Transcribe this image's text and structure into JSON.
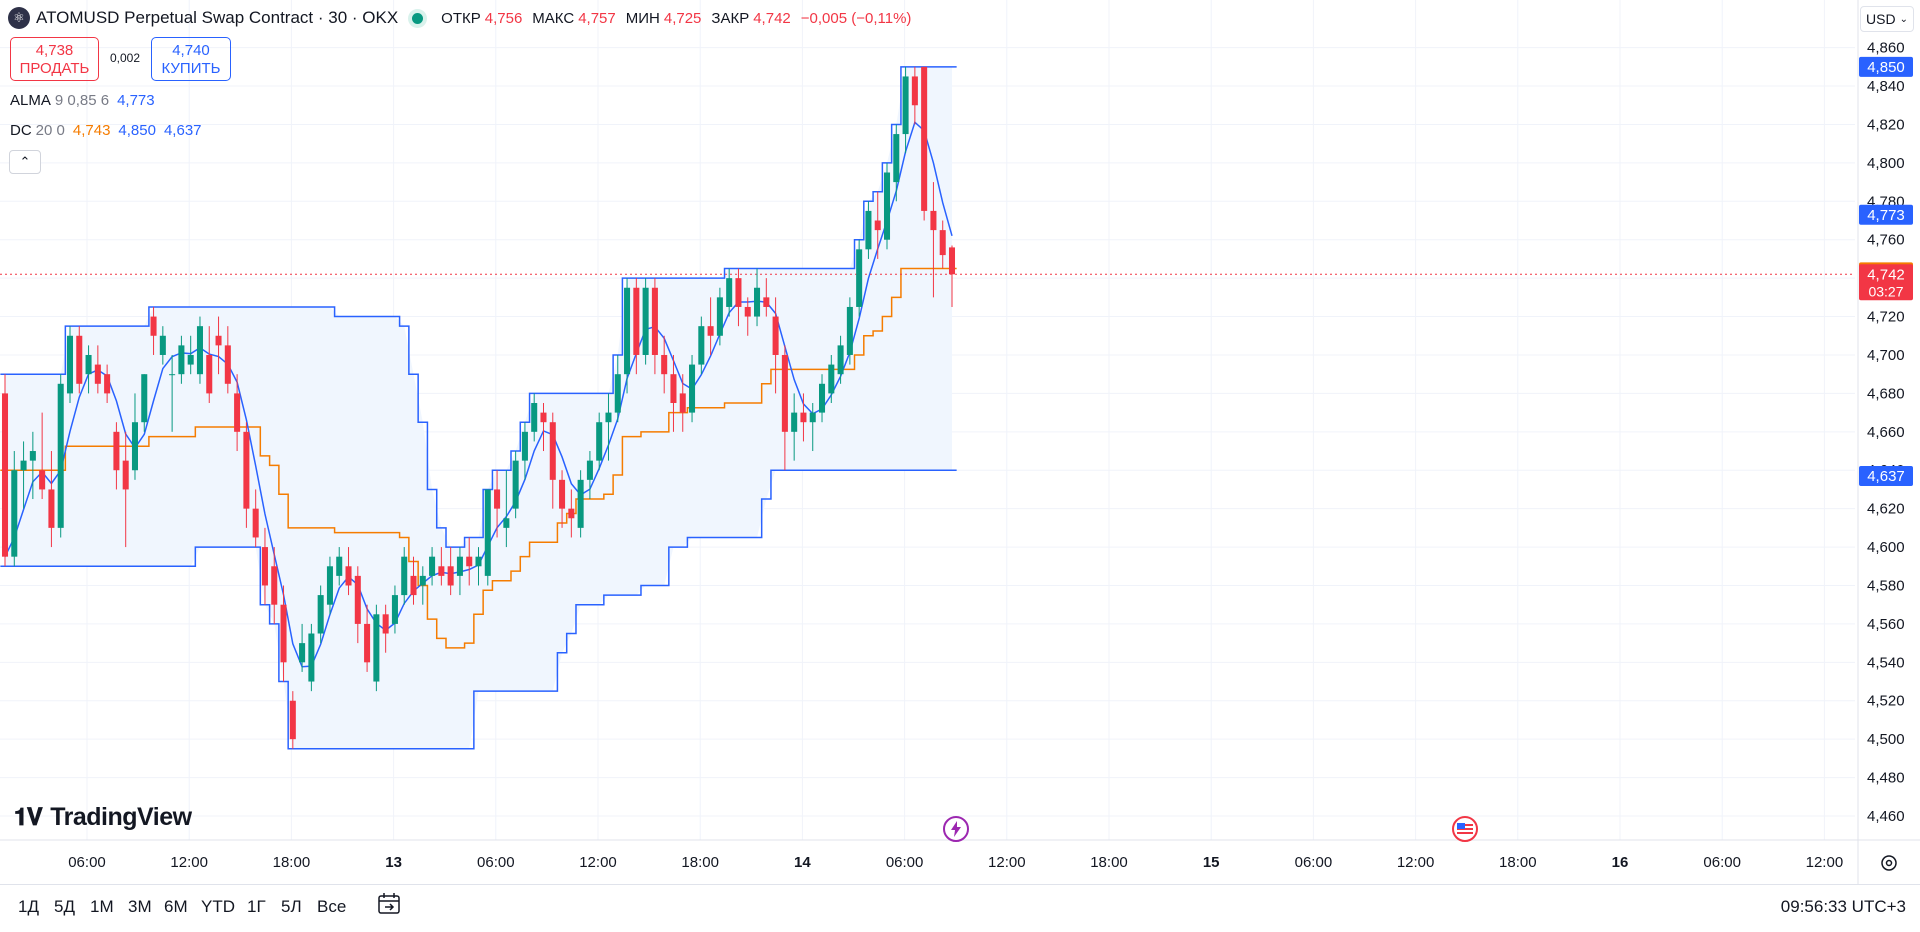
{
  "header": {
    "symbol_title": "ATOMUSD Perpetual Swap Contract · 30 · OKX",
    "icon": "atom-logo-icon",
    "ohlc": [
      {
        "label": "ОТКР",
        "value": "4,756"
      },
      {
        "label": "МАКС",
        "value": "4,757"
      },
      {
        "label": "МИН",
        "value": "4,725"
      },
      {
        "label": "ЗАКР",
        "value": "4,742"
      }
    ],
    "change": "−0,005 (−0,11%)",
    "currency": "USD"
  },
  "trade": {
    "sell_price": "4,738",
    "sell_label": "ПРОДАТЬ",
    "spread": "0,002",
    "buy_price": "4,740",
    "buy_label": "КУПИТЬ"
  },
  "indicators": {
    "alma": {
      "name": "ALMA",
      "params": "9 0,85 6",
      "value": "4,773"
    },
    "dc": {
      "name": "DC",
      "params": "20 0",
      "basis": "4,743",
      "upper": "4,850",
      "lower": "4,637"
    }
  },
  "branding": {
    "logo_text": "TradingView",
    "logo_icon": "tradingview-logo-icon"
  },
  "range_buttons": [
    "1Д",
    "5Д",
    "1М",
    "3М",
    "6М",
    "YTD",
    "1Г",
    "5Л",
    "Все"
  ],
  "clock": "09:56:33 UTC+3",
  "colors": {
    "up": "#089981",
    "down": "#f23645",
    "alma": "#2962ff",
    "dc_upper": "#2962ff",
    "dc_basis": "#f57c00",
    "dc_fill": "#f0f6fe"
  },
  "chart_data": {
    "type": "candlestick",
    "timeframe": "30",
    "y_ticks": [
      "4,460",
      "4,480",
      "4,500",
      "4,520",
      "4,540",
      "4,560",
      "4,580",
      "4,600",
      "4,620",
      "4,640",
      "4,660",
      "4,680",
      "4,700",
      "4,720",
      "4,740",
      "4,760",
      "4,780",
      "4,800",
      "4,820",
      "4,840",
      "4,860"
    ],
    "ylim": [
      4.452,
      4.868
    ],
    "x_ticks": [
      "06:00",
      "12:00",
      "18:00",
      "13",
      "06:00",
      "12:00",
      "18:00",
      "14",
      "06:00",
      "12:00",
      "18:00",
      "15",
      "06:00",
      "12:00",
      "18:00",
      "16",
      "06:00",
      "12:00"
    ],
    "price_labels": [
      {
        "value": "4,850",
        "color": "#2962ff"
      },
      {
        "value": "4,773",
        "color": "#2962ff"
      },
      {
        "value": "4,743",
        "color": "#f57c00"
      },
      {
        "value": "4,742",
        "sub": "03:27",
        "color": "#f23645"
      },
      {
        "value": "4,637",
        "color": "#2962ff"
      }
    ],
    "last_price": 4.742,
    "candles": [
      {
        "o": 4.68,
        "h": 4.69,
        "l": 4.59,
        "c": 4.595
      },
      {
        "o": 4.595,
        "h": 4.65,
        "l": 4.59,
        "c": 4.64
      },
      {
        "o": 4.64,
        "h": 4.655,
        "l": 4.62,
        "c": 4.645
      },
      {
        "o": 4.645,
        "h": 4.66,
        "l": 4.625,
        "c": 4.65
      },
      {
        "o": 4.64,
        "h": 4.67,
        "l": 4.625,
        "c": 4.63
      },
      {
        "o": 4.63,
        "h": 4.65,
        "l": 4.6,
        "c": 4.61
      },
      {
        "o": 4.61,
        "h": 4.69,
        "l": 4.605,
        "c": 4.685
      },
      {
        "o": 4.68,
        "h": 4.715,
        "l": 4.675,
        "c": 4.71
      },
      {
        "o": 4.71,
        "h": 4.715,
        "l": 4.68,
        "c": 4.685
      },
      {
        "o": 4.69,
        "h": 4.705,
        "l": 4.68,
        "c": 4.7
      },
      {
        "o": 4.695,
        "h": 4.705,
        "l": 4.68,
        "c": 4.685
      },
      {
        "o": 4.69,
        "h": 4.695,
        "l": 4.675,
        "c": 4.68
      },
      {
        "o": 4.66,
        "h": 4.665,
        "l": 4.63,
        "c": 4.64
      },
      {
        "o": 4.645,
        "h": 4.66,
        "l": 4.6,
        "c": 4.63
      },
      {
        "o": 4.64,
        "h": 4.68,
        "l": 4.635,
        "c": 4.665
      },
      {
        "o": 4.665,
        "h": 4.69,
        "l": 4.66,
        "c": 4.69
      },
      {
        "o": 4.72,
        "h": 4.725,
        "l": 4.7,
        "c": 4.71
      },
      {
        "o": 4.7,
        "h": 4.715,
        "l": 4.695,
        "c": 4.71
      },
      {
        "o": 4.69,
        "h": 4.7,
        "l": 4.66,
        "c": 4.69
      },
      {
        "o": 4.69,
        "h": 4.71,
        "l": 4.685,
        "c": 4.705
      },
      {
        "o": 4.695,
        "h": 4.71,
        "l": 4.69,
        "c": 4.7
      },
      {
        "o": 4.69,
        "h": 4.72,
        "l": 4.685,
        "c": 4.715
      },
      {
        "o": 4.7,
        "h": 4.715,
        "l": 4.675,
        "c": 4.68
      },
      {
        "o": 4.71,
        "h": 4.72,
        "l": 4.69,
        "c": 4.705
      },
      {
        "o": 4.705,
        "h": 4.715,
        "l": 4.68,
        "c": 4.685
      },
      {
        "o": 4.68,
        "h": 4.69,
        "l": 4.65,
        "c": 4.66
      },
      {
        "o": 4.66,
        "h": 4.665,
        "l": 4.61,
        "c": 4.62
      },
      {
        "o": 4.62,
        "h": 4.63,
        "l": 4.6,
        "c": 4.605
      },
      {
        "o": 4.6,
        "h": 4.61,
        "l": 4.57,
        "c": 4.58
      },
      {
        "o": 4.59,
        "h": 4.6,
        "l": 4.56,
        "c": 4.57
      },
      {
        "o": 4.57,
        "h": 4.58,
        "l": 4.53,
        "c": 4.54
      },
      {
        "o": 4.52,
        "h": 4.525,
        "l": 4.495,
        "c": 4.5
      },
      {
        "o": 4.54,
        "h": 4.56,
        "l": 4.535,
        "c": 4.55
      },
      {
        "o": 4.53,
        "h": 4.56,
        "l": 4.525,
        "c": 4.555
      },
      {
        "o": 4.555,
        "h": 4.58,
        "l": 4.55,
        "c": 4.575
      },
      {
        "o": 4.57,
        "h": 4.595,
        "l": 4.565,
        "c": 4.59
      },
      {
        "o": 4.585,
        "h": 4.6,
        "l": 4.58,
        "c": 4.595
      },
      {
        "o": 4.59,
        "h": 4.6,
        "l": 4.575,
        "c": 4.58
      },
      {
        "o": 4.585,
        "h": 4.59,
        "l": 4.55,
        "c": 4.56
      },
      {
        "o": 4.56,
        "h": 4.57,
        "l": 4.535,
        "c": 4.54
      },
      {
        "o": 4.53,
        "h": 4.57,
        "l": 4.525,
        "c": 4.565
      },
      {
        "o": 4.565,
        "h": 4.57,
        "l": 4.545,
        "c": 4.555
      },
      {
        "o": 4.56,
        "h": 4.58,
        "l": 4.555,
        "c": 4.575
      },
      {
        "o": 4.575,
        "h": 4.6,
        "l": 4.57,
        "c": 4.595
      },
      {
        "o": 4.585,
        "h": 4.595,
        "l": 4.57,
        "c": 4.575
      },
      {
        "o": 4.58,
        "h": 4.59,
        "l": 4.57,
        "c": 4.585
      },
      {
        "o": 4.585,
        "h": 4.6,
        "l": 4.58,
        "c": 4.595
      },
      {
        "o": 4.59,
        "h": 4.6,
        "l": 4.58,
        "c": 4.585
      },
      {
        "o": 4.59,
        "h": 4.6,
        "l": 4.575,
        "c": 4.58
      },
      {
        "o": 4.585,
        "h": 4.6,
        "l": 4.575,
        "c": 4.595
      },
      {
        "o": 4.595,
        "h": 4.605,
        "l": 4.58,
        "c": 4.59
      },
      {
        "o": 4.59,
        "h": 4.6,
        "l": 4.58,
        "c": 4.595
      },
      {
        "o": 4.585,
        "h": 4.63,
        "l": 4.58,
        "c": 4.63
      },
      {
        "o": 4.63,
        "h": 4.64,
        "l": 4.605,
        "c": 4.62
      },
      {
        "o": 4.61,
        "h": 4.64,
        "l": 4.6,
        "c": 4.615
      },
      {
        "o": 4.62,
        "h": 4.65,
        "l": 4.615,
        "c": 4.645
      },
      {
        "o": 4.645,
        "h": 4.665,
        "l": 4.635,
        "c": 4.66
      },
      {
        "o": 4.66,
        "h": 4.68,
        "l": 4.655,
        "c": 4.675
      },
      {
        "o": 4.67,
        "h": 4.675,
        "l": 4.65,
        "c": 4.665
      },
      {
        "o": 4.665,
        "h": 4.67,
        "l": 4.62,
        "c": 4.635
      },
      {
        "o": 4.635,
        "h": 4.64,
        "l": 4.61,
        "c": 4.62
      },
      {
        "o": 4.62,
        "h": 4.63,
        "l": 4.605,
        "c": 4.615
      },
      {
        "o": 4.61,
        "h": 4.64,
        "l": 4.605,
        "c": 4.635
      },
      {
        "o": 4.635,
        "h": 4.65,
        "l": 4.625,
        "c": 4.645
      },
      {
        "o": 4.645,
        "h": 4.67,
        "l": 4.64,
        "c": 4.665
      },
      {
        "o": 4.665,
        "h": 4.68,
        "l": 4.645,
        "c": 4.67
      },
      {
        "o": 4.67,
        "h": 4.7,
        "l": 4.665,
        "c": 4.69
      },
      {
        "o": 4.69,
        "h": 4.74,
        "l": 4.68,
        "c": 4.735
      },
      {
        "o": 4.735,
        "h": 4.74,
        "l": 4.69,
        "c": 4.7
      },
      {
        "o": 4.7,
        "h": 4.74,
        "l": 4.695,
        "c": 4.735
      },
      {
        "o": 4.735,
        "h": 4.74,
        "l": 4.69,
        "c": 4.7
      },
      {
        "o": 4.7,
        "h": 4.71,
        "l": 4.68,
        "c": 4.69
      },
      {
        "o": 4.69,
        "h": 4.7,
        "l": 4.66,
        "c": 4.675
      },
      {
        "o": 4.68,
        "h": 4.69,
        "l": 4.66,
        "c": 4.67
      },
      {
        "o": 4.67,
        "h": 4.7,
        "l": 4.665,
        "c": 4.695
      },
      {
        "o": 4.695,
        "h": 4.72,
        "l": 4.69,
        "c": 4.715
      },
      {
        "o": 4.715,
        "h": 4.73,
        "l": 4.7,
        "c": 4.71
      },
      {
        "o": 4.71,
        "h": 4.735,
        "l": 4.705,
        "c": 4.73
      },
      {
        "o": 4.725,
        "h": 4.745,
        "l": 4.72,
        "c": 4.74
      },
      {
        "o": 4.74,
        "h": 4.745,
        "l": 4.715,
        "c": 4.725
      },
      {
        "o": 4.725,
        "h": 4.73,
        "l": 4.71,
        "c": 4.72
      },
      {
        "o": 4.72,
        "h": 4.745,
        "l": 4.715,
        "c": 4.735
      },
      {
        "o": 4.73,
        "h": 4.74,
        "l": 4.72,
        "c": 4.725
      },
      {
        "o": 4.72,
        "h": 4.73,
        "l": 4.68,
        "c": 4.7
      },
      {
        "o": 4.7,
        "h": 4.705,
        "l": 4.64,
        "c": 4.66
      },
      {
        "o": 4.66,
        "h": 4.68,
        "l": 4.645,
        "c": 4.67
      },
      {
        "o": 4.67,
        "h": 4.68,
        "l": 4.655,
        "c": 4.665
      },
      {
        "o": 4.665,
        "h": 4.675,
        "l": 4.65,
        "c": 4.67
      },
      {
        "o": 4.67,
        "h": 4.69,
        "l": 4.665,
        "c": 4.685
      },
      {
        "o": 4.68,
        "h": 4.7,
        "l": 4.675,
        "c": 4.695
      },
      {
        "o": 4.69,
        "h": 4.71,
        "l": 4.685,
        "c": 4.705
      },
      {
        "o": 4.7,
        "h": 4.73,
        "l": 4.695,
        "c": 4.725
      },
      {
        "o": 4.725,
        "h": 4.76,
        "l": 4.72,
        "c": 4.755
      },
      {
        "o": 4.755,
        "h": 4.78,
        "l": 4.75,
        "c": 4.775
      },
      {
        "o": 4.77,
        "h": 4.785,
        "l": 4.75,
        "c": 4.765
      },
      {
        "o": 4.76,
        "h": 4.8,
        "l": 4.755,
        "c": 4.795
      },
      {
        "o": 4.79,
        "h": 4.82,
        "l": 4.78,
        "c": 4.815
      },
      {
        "o": 4.815,
        "h": 4.85,
        "l": 4.805,
        "c": 4.845
      },
      {
        "o": 4.845,
        "h": 4.85,
        "l": 4.82,
        "c": 4.83
      },
      {
        "o": 4.85,
        "h": 4.85,
        "l": 4.77,
        "c": 4.775
      },
      {
        "o": 4.775,
        "h": 4.79,
        "l": 4.73,
        "c": 4.765
      },
      {
        "o": 4.765,
        "h": 4.77,
        "l": 4.745,
        "c": 4.752
      },
      {
        "o": 4.756,
        "h": 4.757,
        "l": 4.725,
        "c": 4.742
      }
    ]
  }
}
